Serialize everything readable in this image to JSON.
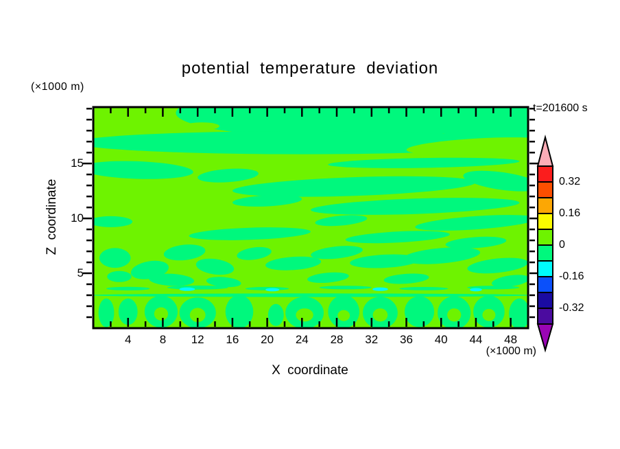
{
  "header": {
    "title": "potential temperature deviation",
    "time_annotation": "t=201600 s"
  },
  "axes": {
    "x": {
      "label": "X coordinate",
      "unit_label": "(×1000 m)"
    },
    "z": {
      "label": "Z coordinate",
      "unit_label": "(×1000 m)"
    }
  },
  "chart_data": {
    "type": "heatmap",
    "title": "potential temperature deviation",
    "time_annotation": "t=201600 s",
    "xlabel": "X coordinate",
    "x_units": "(×1000 m)",
    "ylabel": "Z coordinate",
    "y_units": "(×1000 m)",
    "xlim": [
      0,
      50
    ],
    "ylim": [
      0,
      20.2
    ],
    "x_major_ticks": [
      4,
      8,
      12,
      16,
      20,
      24,
      28,
      32,
      36,
      40,
      44,
      48
    ],
    "x_minor_tick_step": 2,
    "y_major_ticks": [
      5,
      10,
      15
    ],
    "y_minor_tick_step": 1,
    "contour_interval": 0.08,
    "colorbar": {
      "levels": [
        0.4,
        0.32,
        0.24,
        0.16,
        0.08,
        0,
        -0.08,
        -0.16,
        -0.24,
        -0.32,
        -0.4
      ],
      "segment_colors": [
        "#fb1d1d",
        "#fc4f00",
        "#fca704",
        "#fbfb00",
        "#6ef300",
        "#00f87d",
        "#00fbfb",
        "#0b50fa",
        "#1a0ba1",
        "#4b0b9f"
      ],
      "over_color": "#fbacb6",
      "under_color": "#9a06b5",
      "tick_labels": [
        "0.32",
        "0.16",
        "0",
        "-0.16",
        "-0.32"
      ],
      "frame_color": "#000000"
    },
    "description": "Vertical cross-section contour fill of potential temperature deviation; nearly all plotted values lie between -0.08 (spring-green) and +0.08 (bright green), with a few spots near -0.16 (cyan) close to z=3.5.",
    "field": {
      "positive_band_color": "#6ef300",
      "negative_band_color": "#00f87d",
      "spot_band_color": "#00fbfb",
      "negative_shapes": [
        [
          29,
          19.6,
          19.5,
          2.3,
          0
        ],
        [
          24,
          16.9,
          26,
          1.05,
          0
        ],
        [
          46,
          18.6,
          6.5,
          1.8,
          0
        ],
        [
          38,
          15.05,
          11,
          0.45,
          -1
        ],
        [
          5,
          14.4,
          6.5,
          0.8,
          2
        ],
        [
          15.5,
          13.9,
          3.5,
          0.6,
          -4
        ],
        [
          30,
          12.9,
          14,
          0.85,
          -2
        ],
        [
          47,
          13.4,
          4.5,
          0.8,
          8
        ],
        [
          37,
          11.1,
          12,
          0.7,
          -2
        ],
        [
          20,
          11.6,
          4,
          0.5,
          -3
        ],
        [
          44,
          9.6,
          7,
          0.6,
          -4
        ],
        [
          2,
          9.7,
          2.5,
          0.5,
          0
        ],
        [
          28.5,
          9.8,
          3,
          0.45,
          -5
        ],
        [
          18,
          8.6,
          7,
          0.55,
          -2
        ],
        [
          35,
          8.3,
          6,
          0.5,
          -3
        ],
        [
          2.5,
          6.4,
          1.8,
          0.9,
          0
        ],
        [
          6.5,
          5.3,
          2.2,
          0.8,
          -10
        ],
        [
          10.5,
          6.9,
          2.4,
          0.7,
          -6
        ],
        [
          14,
          5.6,
          2.2,
          0.7,
          8
        ],
        [
          9,
          4.4,
          2.6,
          0.55,
          3
        ],
        [
          18.5,
          6.8,
          2,
          0.55,
          -8
        ],
        [
          23,
          5.9,
          3.2,
          0.6,
          -4
        ],
        [
          28,
          6.9,
          3,
          0.55,
          -6
        ],
        [
          33.5,
          6.1,
          4,
          0.6,
          -3
        ],
        [
          40,
          6.6,
          4.5,
          0.7,
          -5
        ],
        [
          46.5,
          5.7,
          3.5,
          0.65,
          -6
        ],
        [
          44,
          7.8,
          3.5,
          0.5,
          -4
        ],
        [
          3,
          4.7,
          1.4,
          0.5,
          0
        ],
        [
          15,
          4.2,
          2,
          0.45,
          5
        ],
        [
          27,
          4.6,
          2.4,
          0.45,
          -5
        ],
        [
          36,
          4.5,
          2.6,
          0.45,
          -4
        ],
        [
          48,
          4.3,
          2.2,
          0.5,
          -8
        ],
        [
          25,
          3.0,
          25.5,
          0.16,
          0
        ],
        [
          12,
          3.7,
          3.5,
          0.18,
          0
        ],
        [
          20,
          3.6,
          2.5,
          0.15,
          0
        ],
        [
          29,
          3.7,
          3,
          0.16,
          0
        ],
        [
          38,
          3.6,
          2.8,
          0.15,
          0
        ],
        [
          46,
          3.7,
          3,
          0.16,
          0
        ],
        [
          4,
          3.6,
          2.5,
          0.16,
          0
        ],
        [
          1.5,
          1.4,
          0.9,
          1.3,
          0
        ],
        [
          4,
          1.5,
          1.1,
          1.2,
          0
        ],
        [
          7.8,
          1.5,
          1.9,
          1.45,
          0
        ],
        [
          12,
          1.4,
          2.1,
          1.4,
          0
        ],
        [
          16.8,
          1.5,
          1.6,
          1.5,
          0
        ],
        [
          21,
          1.2,
          0.9,
          1.0,
          0
        ],
        [
          24.3,
          1.4,
          2.2,
          1.45,
          0
        ],
        [
          28.8,
          1.5,
          1.8,
          1.5,
          0
        ],
        [
          33,
          1.4,
          2.0,
          1.45,
          0
        ],
        [
          37.5,
          1.5,
          1.7,
          1.4,
          0
        ],
        [
          41.5,
          1.4,
          1.9,
          1.5,
          0
        ],
        [
          45.5,
          1.5,
          1.8,
          1.45,
          0
        ],
        [
          49,
          1.3,
          1.2,
          1.4,
          0
        ]
      ],
      "positive_overlays": [
        [
          44.5,
          16.6,
          8.5,
          0.7,
          -3
        ],
        [
          12.5,
          18.4,
          2,
          0.35,
          0
        ],
        [
          7.8,
          1.3,
          0.8,
          0.6,
          0
        ],
        [
          12,
          1.2,
          0.9,
          0.65,
          0
        ],
        [
          24.3,
          1.2,
          1.0,
          0.6,
          0
        ],
        [
          28.8,
          1.15,
          0.7,
          0.5,
          0
        ],
        [
          33,
          1.2,
          0.85,
          0.6,
          0
        ],
        [
          41.5,
          1.2,
          0.8,
          0.6,
          0
        ],
        [
          45.5,
          1.2,
          0.75,
          0.55,
          0
        ]
      ],
      "spot_shapes": [
        [
          10.8,
          3.55,
          0.9,
          0.16,
          0
        ],
        [
          20.6,
          3.5,
          0.8,
          0.15,
          0
        ],
        [
          33,
          3.55,
          0.9,
          0.16,
          0
        ],
        [
          44,
          3.5,
          0.7,
          0.15,
          0
        ]
      ]
    }
  }
}
